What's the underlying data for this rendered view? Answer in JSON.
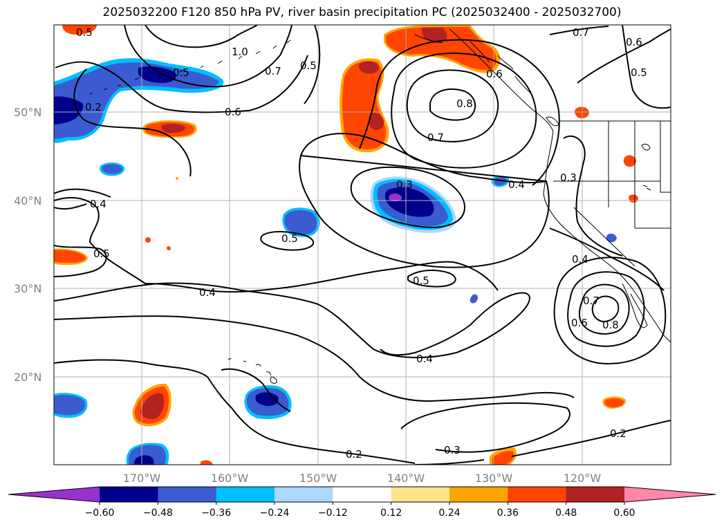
{
  "title": "2025032200 F120 850 hPa PV, river basin precipitation PC (2025032400 - 2025032700)",
  "map": {
    "lat_labels": [
      "50°N",
      "40°N",
      "30°N",
      "20°N"
    ],
    "lon_labels": [
      "170°W",
      "160°W",
      "150°W",
      "140°W",
      "130°W",
      "120°W"
    ],
    "contour_labels": [
      "0.5",
      "1.0",
      "0.7",
      "0.5",
      "0.2",
      "0.6",
      "0.5",
      "0.4",
      "0.3",
      "0.5",
      "0.4",
      "0.5",
      "0.8",
      "0.7",
      "0.6",
      "0.7",
      "0.6",
      "0.5",
      "0.4",
      "0.3",
      "0.4",
      "0.7",
      "0.6",
      "0.8",
      "0.5",
      "0.4",
      "0.3",
      "0.2",
      "0.2"
    ],
    "colors": {
      "purple": "#9932cc",
      "navy": "#00008b",
      "royal_blue": "#3b5bd0",
      "deep_sky_blue": "#00bfff",
      "light_blue": "#add8ff",
      "white": "#ffffff",
      "khaki": "#fde68a",
      "orange": "#ffa500",
      "orange_red": "#ff4500",
      "firebrick": "#b22222",
      "pink": "#ff88aa"
    }
  },
  "colorbar": {
    "ticks": [
      "−0.60",
      "−0.48",
      "−0.36",
      "−0.24",
      "−0.12",
      "0.12",
      "0.24",
      "0.36",
      "0.48",
      "0.60"
    ],
    "colors": [
      "#9932cc",
      "#00008b",
      "#3b5bd0",
      "#00bfff",
      "#add8ff",
      "#ffffff",
      "#fde68a",
      "#ffa500",
      "#ff4500",
      "#b22222",
      "#ff88aa"
    ]
  }
}
